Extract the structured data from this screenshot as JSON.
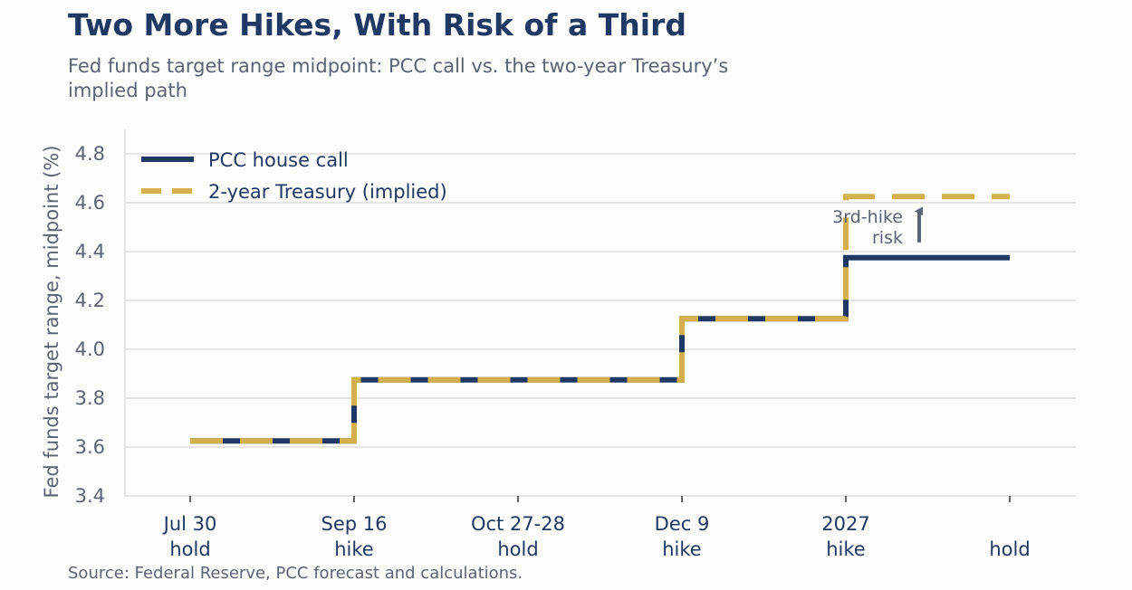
{
  "header": {
    "title": "Two More Hikes, With Risk of a Third",
    "subtitle": "Fed funds target range midpoint: PCC call vs. the two-year Treasury’s implied path"
  },
  "source": "Source: Federal Reserve, PCC forecast and calculations.",
  "chart_data": {
    "type": "line",
    "step": "post",
    "ylabel": "Fed funds target range, midpoint (%)",
    "ylim": [
      3.4,
      4.9
    ],
    "yticks": [
      3.4,
      3.6,
      3.8,
      4.0,
      4.2,
      4.4,
      4.6,
      4.8
    ],
    "grid": "horizontal",
    "legend_position": "top-left",
    "categories": [
      {
        "line1": "Jul 30",
        "line2": "hold"
      },
      {
        "line1": "Sep 16",
        "line2": "hike"
      },
      {
        "line1": "Oct 27-28",
        "line2": "hold"
      },
      {
        "line1": "Dec 9",
        "line2": "hike"
      },
      {
        "line1": "2027",
        "line2": "hike"
      },
      {
        "line1": "",
        "line2": "hold"
      }
    ],
    "series": [
      {
        "name": "PCC house call",
        "values": [
          3.625,
          3.875,
          3.875,
          4.125,
          4.375,
          4.375
        ],
        "color": "#1f3864",
        "style": "solid"
      },
      {
        "name": "2-year Treasury (implied)",
        "values": [
          3.625,
          3.875,
          3.875,
          4.125,
          4.625,
          4.625
        ],
        "color": "#d4b04c",
        "style": "dashed"
      }
    ],
    "annotation": {
      "line1": "3rd-hike",
      "line2": "risk",
      "from": 4.43,
      "to": 4.58,
      "category_index": 4
    }
  }
}
